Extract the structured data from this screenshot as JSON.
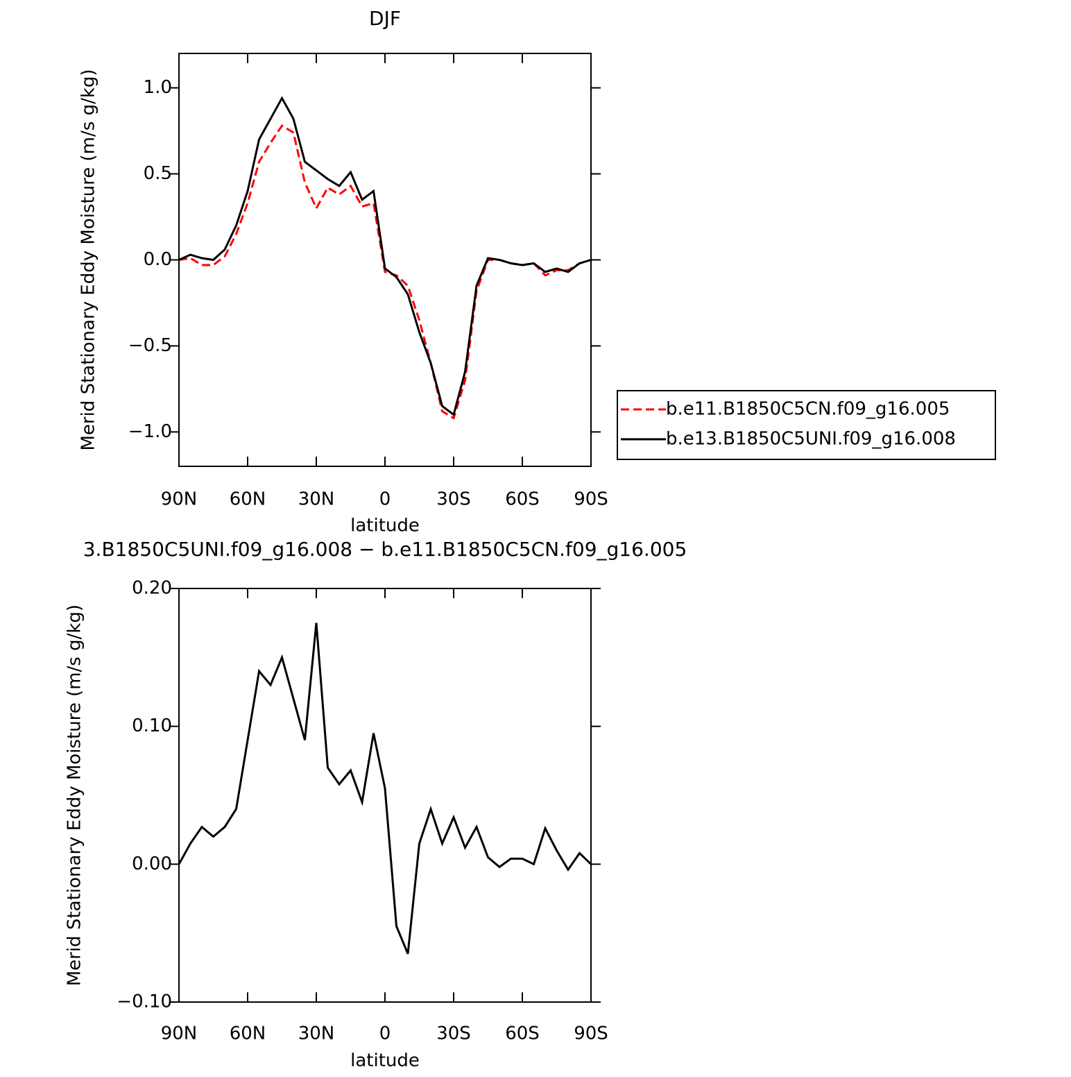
{
  "chart_data": [
    {
      "type": "line",
      "title": "DJF",
      "xlabel": "latitude",
      "ylabel": "Merid Stationary Eddy Moisture (m/s g/kg)",
      "x": [
        90,
        85,
        80,
        75,
        70,
        65,
        60,
        55,
        50,
        45,
        40,
        35,
        30,
        25,
        20,
        15,
        10,
        5,
        0,
        -5,
        -10,
        -15,
        -20,
        -25,
        -30,
        -35,
        -40,
        -45,
        -50,
        -55,
        -60,
        -65,
        -70,
        -75,
        -80,
        -85,
        -90
      ],
      "series": [
        {
          "name": "b.e11.B1850C5CN.f09_g16.005",
          "color": "#ff0000",
          "dash": true,
          "values": [
            0,
            0.01,
            -0.03,
            -0.03,
            0.02,
            0.15,
            0.33,
            0.57,
            0.68,
            0.78,
            0.74,
            0.45,
            0.3,
            0.42,
            0.38,
            0.43,
            0.31,
            0.33,
            -0.07,
            -0.09,
            -0.15,
            -0.35,
            -0.6,
            -0.88,
            -0.92,
            -0.7,
            -0.18,
            0,
            0,
            -0.02,
            -0.03,
            -0.02,
            -0.09,
            -0.06,
            -0.06,
            -0.02,
            0
          ]
        },
        {
          "name": "b.e13.B1850C5UNI.f09_g16.008",
          "color": "#000000",
          "dash": false,
          "values": [
            0,
            0.03,
            0.01,
            0,
            0.06,
            0.2,
            0.4,
            0.7,
            0.82,
            0.94,
            0.82,
            0.57,
            0.52,
            0.47,
            0.43,
            0.51,
            0.35,
            0.4,
            -0.05,
            -0.1,
            -0.2,
            -0.42,
            -0.6,
            -0.85,
            -0.9,
            -0.65,
            -0.15,
            0.01,
            0,
            -0.02,
            -0.03,
            -0.02,
            -0.07,
            -0.05,
            -0.07,
            -0.02,
            0
          ]
        }
      ],
      "xlim": [
        90,
        -90
      ],
      "xticks": [
        {
          "value": 90,
          "label": "90N"
        },
        {
          "value": 60,
          "label": "60N"
        },
        {
          "value": 30,
          "label": "30N"
        },
        0,
        {
          "value": -30,
          "label": "30S"
        },
        {
          "value": -60,
          "label": "60S"
        },
        {
          "value": -90,
          "label": "90S"
        }
      ],
      "ylim": [
        -1.2,
        1.2
      ],
      "yticks": [
        {
          "value": -1,
          "label": "−1.0"
        },
        {
          "value": -0.5,
          "label": "−0.5"
        },
        {
          "value": 0,
          "label": "0.0"
        },
        0.5,
        {
          "value": 1,
          "label": "1.0"
        }
      ],
      "legend": "right"
    },
    {
      "type": "line",
      "title": "3.B1850C5UNI.f09_g16.008 − b.e11.B1850C5CN.f09_g16.005",
      "xlabel": "latitude",
      "ylabel": "Merid Stationary Eddy Moisture (m/s g/kg)",
      "x": [
        90,
        85,
        80,
        75,
        70,
        65,
        60,
        55,
        50,
        45,
        40,
        35,
        30,
        25,
        20,
        15,
        10,
        5,
        0,
        -5,
        -10,
        -15,
        -20,
        -25,
        -30,
        -35,
        -40,
        -45,
        -50,
        -55,
        -60,
        -65,
        -70,
        -75,
        -80,
        -85,
        -90
      ],
      "color": "#000000",
      "values": [
        0,
        0.015,
        0.027,
        0.02,
        0.027,
        0.04,
        0.09,
        0.14,
        0.13,
        0.15,
        0.12,
        0.09,
        0.175,
        0.07,
        0.058,
        0.068,
        0.045,
        0.095,
        0.055,
        -0.045,
        -0.065,
        0.015,
        0.04,
        0.015,
        0.034,
        0.012,
        0.027,
        0.005,
        -0.002,
        0.004,
        0.004,
        0,
        0.026,
        0.01,
        -0.004,
        0.008,
        0
      ],
      "xlim": [
        90,
        -90
      ],
      "xticks": [
        {
          "value": 90,
          "label": "90N"
        },
        {
          "value": 60,
          "label": "60N"
        },
        {
          "value": 30,
          "label": "30N"
        },
        0,
        {
          "value": -30,
          "label": "30S"
        },
        {
          "value": -60,
          "label": "60S"
        },
        {
          "value": -90,
          "label": "90S"
        }
      ],
      "ylim": [
        -0.1,
        0.2
      ],
      "yticks": [
        {
          "value": -0.1,
          "label": "−0.10"
        },
        {
          "value": 0,
          "label": "0.00"
        },
        {
          "value": 0.1,
          "label": "0.10"
        },
        {
          "value": 0.2,
          "label": "0.20"
        }
      ]
    }
  ]
}
